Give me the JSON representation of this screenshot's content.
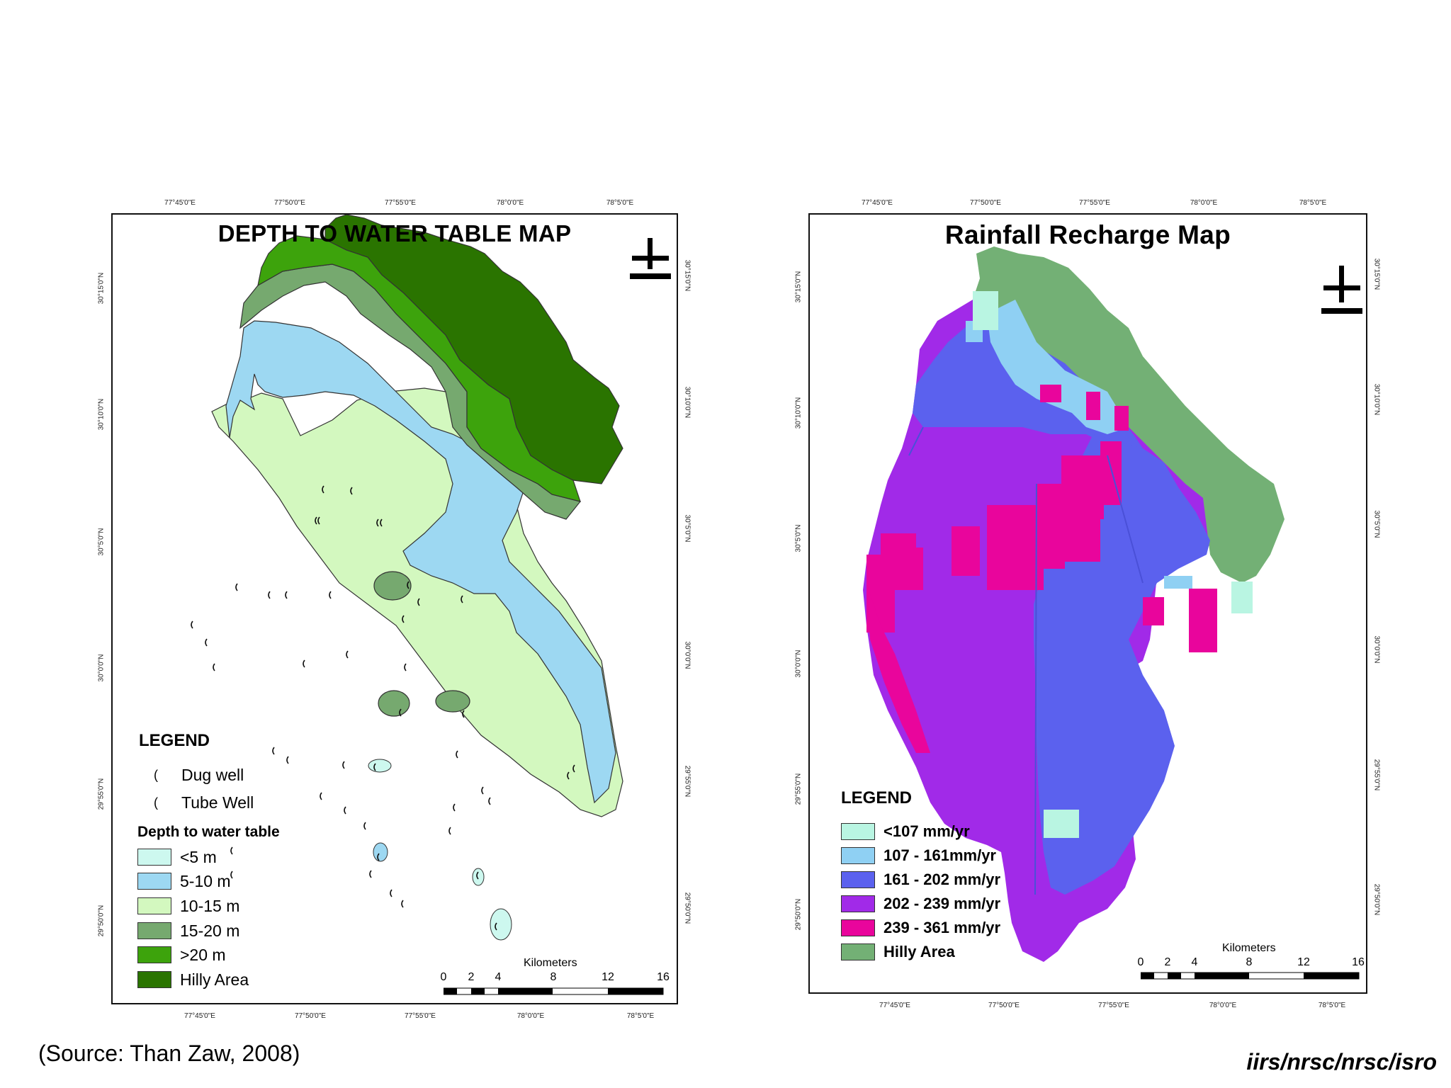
{
  "left_map": {
    "title": "DEPTH TO WATER TABLE MAP",
    "top_ticks": [
      "77°45'0\"E",
      "77°50'0\"E",
      "77°55'0\"E",
      "78°0'0\"E",
      "78°5'0\"E"
    ],
    "bottom_ticks": [
      "77°45'0\"E",
      "77°50'0\"E",
      "77°55'0\"E",
      "78°0'0\"E",
      "78°5'0\"E"
    ],
    "left_ticks": [
      "30°15'0\"N",
      "30°10'0\"N",
      "30°5'0\"N",
      "30°0'0\"N",
      "29°55'0\"N",
      "29°50'0\"N"
    ],
    "right_ticks": [
      "30°15'0\"N",
      "30°10'0\"N",
      "30°5'0\"N",
      "30°0'0\"N",
      "29°55'0\"N",
      "29°50'0\"N"
    ],
    "legend": {
      "title": "LEGEND",
      "wells": [
        {
          "label": "Dug well",
          "symbol": "("
        },
        {
          "label": "Tube Well",
          "symbol": "("
        }
      ],
      "subtitle": "Depth to water table",
      "classes": [
        {
          "label": "<5 m",
          "color": "#cdf8ef"
        },
        {
          "label": "5-10 m",
          "color": "#9dd8f2"
        },
        {
          "label": "10-15 m",
          "color": "#d3f8bf"
        },
        {
          "label": "15-20 m",
          "color": "#76a96f"
        },
        {
          "label": ">20 m",
          "color": "#3da30c"
        },
        {
          "label": "Hilly Area",
          "color": "#2a7400"
        }
      ]
    },
    "scale": {
      "unit": "Kilometers",
      "labels": [
        "0",
        "2",
        "4",
        "8",
        "12",
        "16"
      ]
    }
  },
  "right_map": {
    "title": "Rainfall Recharge Map",
    "top_ticks": [
      "77°45'0\"E",
      "77°50'0\"E",
      "77°55'0\"E",
      "78°0'0\"E",
      "78°5'0\"E"
    ],
    "bottom_ticks": [
      "77°45'0\"E",
      "77°50'0\"E",
      "77°55'0\"E",
      "78°0'0\"E",
      "78°5'0\"E"
    ],
    "left_ticks": [
      "30°15'0\"N",
      "30°10'0\"N",
      "30°5'0\"N",
      "30°0'0\"N",
      "29°55'0\"N",
      "29°50'0\"N"
    ],
    "right_ticks": [
      "30°15'0\"N",
      "30°10'0\"N",
      "30°5'0\"N",
      "30°0'0\"N",
      "29°55'0\"N",
      "29°50'0\"N"
    ],
    "legend": {
      "title": "LEGEND",
      "classes": [
        {
          "label": "<107 mm/yr",
          "color": "#b9f5e2"
        },
        {
          "label": "107 - 161mm/yr",
          "color": "#8fd0f3"
        },
        {
          "label": "161 - 202 mm/yr",
          "color": "#5b61ee"
        },
        {
          "label": "202 - 239 mm/yr",
          "color": "#a12ae8"
        },
        {
          "label": "239 - 361 mm/yr",
          "color": "#e9059c"
        },
        {
          "label": "Hilly Area",
          "color": "#73b075"
        }
      ]
    },
    "scale": {
      "unit": "Kilometers",
      "labels": [
        "0",
        "2",
        "4",
        "8",
        "12",
        "16"
      ]
    }
  },
  "footer": {
    "source": "(Source: Than Zaw, 2008)",
    "credit": "iirs/nrsc/nrsc/isro"
  }
}
